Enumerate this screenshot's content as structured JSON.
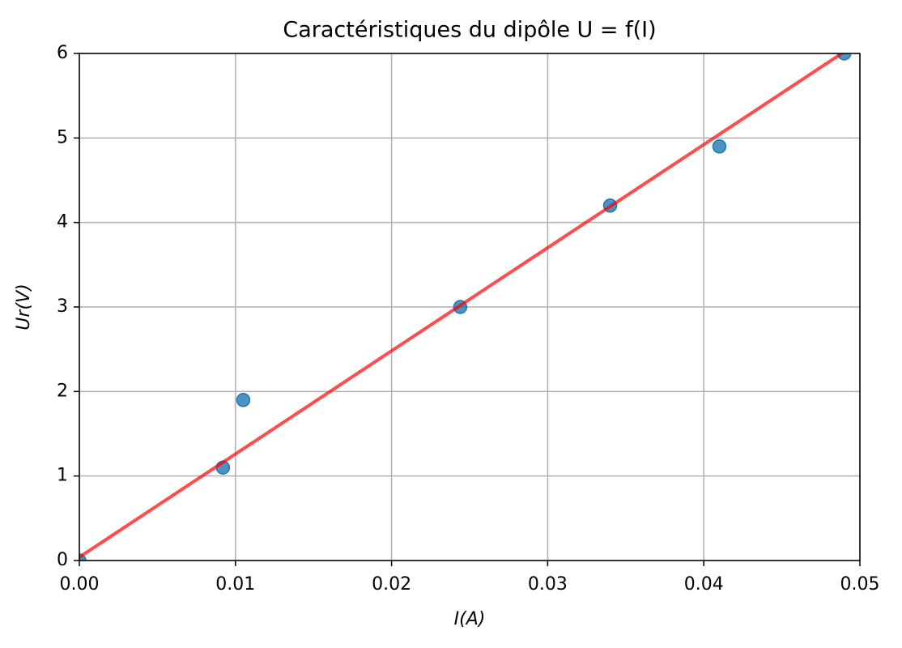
{
  "chart_data": {
    "type": "scatter",
    "title": "Caractéristiques du dipôle U = f(I)",
    "x_label": "I(A)",
    "y_label": "Ur(V)",
    "series": [
      {
        "mode": "markers",
        "color": "#1f77b4",
        "x": [
          0,
          0.0092,
          0.0105,
          0.0244,
          0.034,
          0.041,
          0.049
        ],
        "values": [
          0,
          1.1,
          1.9,
          3.0,
          4.2,
          4.9,
          6.0
        ]
      },
      {
        "mode": "line",
        "color": "#ff0000",
        "x": [
          0,
          0.049
        ],
        "values": [
          0.04,
          6.02
        ]
      }
    ],
    "xlim": [
      0,
      0.05
    ],
    "xticks": [
      {
        "value": 0,
        "label": "0.00"
      },
      {
        "value": 0.01,
        "label": "0.01"
      },
      {
        "value": 0.02,
        "label": "0.02"
      },
      {
        "value": 0.03,
        "label": "0.03"
      },
      {
        "value": 0.04,
        "label": "0.04"
      },
      {
        "value": 0.05,
        "label": "0.05"
      }
    ],
    "ylim": [
      0,
      6
    ],
    "yticks": [
      0,
      1,
      2,
      3,
      4,
      5,
      6
    ],
    "grid": true
  }
}
